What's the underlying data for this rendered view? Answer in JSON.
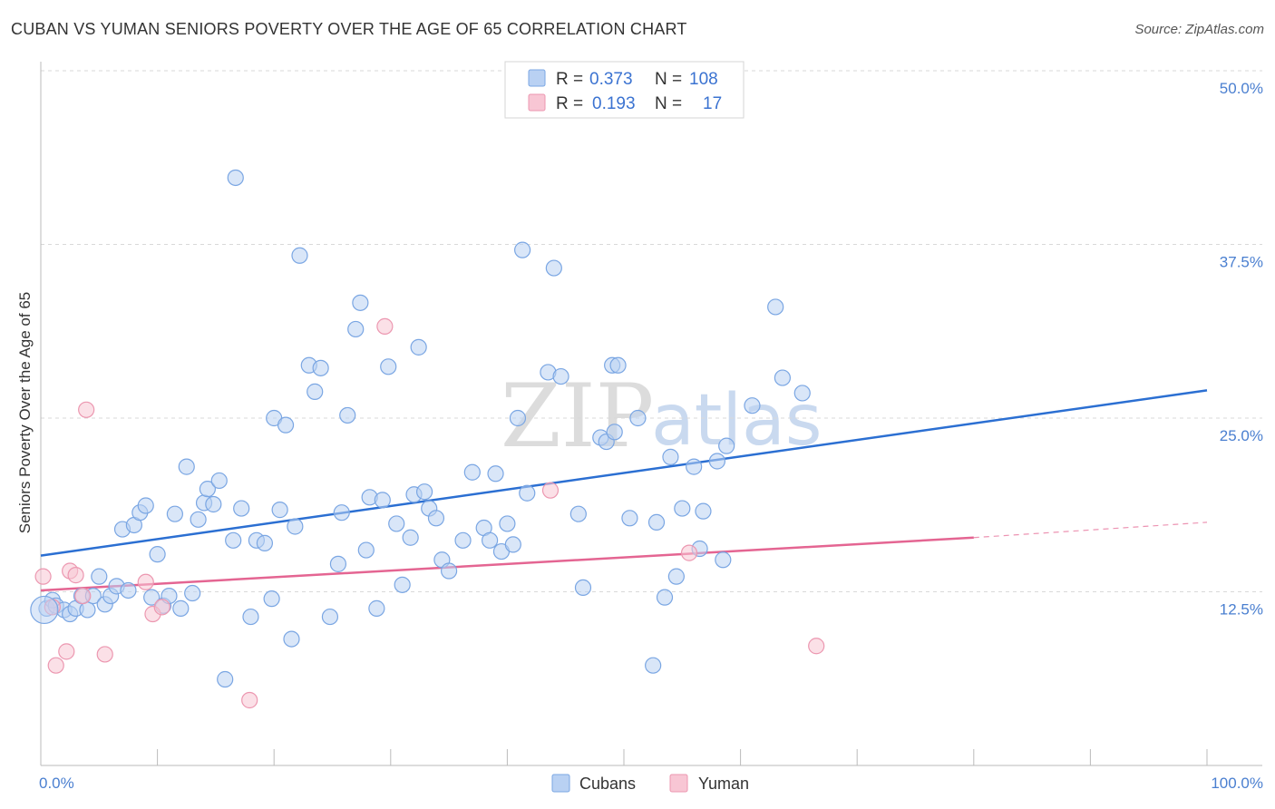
{
  "header": {
    "title": "CUBAN VS YUMAN SENIORS POVERTY OVER THE AGE OF 65 CORRELATION CHART",
    "source": "Source: ZipAtlas.com"
  },
  "watermark": {
    "zip": "ZIP",
    "atlas": "atlas"
  },
  "colors": {
    "blue_fill": "#b9d1f3",
    "blue_stroke": "#7aa6e3",
    "blue_line": "#2b6fd2",
    "pink_fill": "#f8c6d4",
    "pink_stroke": "#ec97b0",
    "pink_line": "#e46592",
    "grid": "#d9d9d9"
  },
  "legend": {
    "rows": [
      {
        "r_label": "R =",
        "r_value": "0.373",
        "n_label": "N =",
        "n_value": "108"
      },
      {
        "r_label": "R =",
        "r_value": "0.193",
        "n_label": "N =",
        "n_value": "17"
      }
    ]
  },
  "bottom_legend": [
    "Cubans",
    "Yuman"
  ],
  "chart_data": {
    "type": "scatter",
    "title": "CUBAN VS YUMAN SENIORS POVERTY OVER THE AGE OF 65 CORRELATION CHART",
    "xlabel": "",
    "ylabel": "Seniors Poverty Over the Age of 65",
    "xlim": [
      0,
      100
    ],
    "ylim": [
      0,
      50
    ],
    "x_tick_labels": [
      "0.0%",
      "100.0%"
    ],
    "y_ticks": [
      12.5,
      25.0,
      37.5,
      50.0
    ],
    "y_tick_labels": [
      "12.5%",
      "25.0%",
      "37.5%",
      "50.0%"
    ],
    "series": [
      {
        "name": "Cubans",
        "R": 0.373,
        "N": 108,
        "trend": {
          "x0": 0,
          "y0": 15.1,
          "x1": 100,
          "y1": 27.0
        },
        "points": [
          [
            0.5,
            11.3
          ],
          [
            1.0,
            11.9
          ],
          [
            1.3,
            11.5
          ],
          [
            2.0,
            11.2
          ],
          [
            2.5,
            10.9
          ],
          [
            3.0,
            11.3
          ],
          [
            3.5,
            12.2
          ],
          [
            4.0,
            11.2
          ],
          [
            4.5,
            12.2
          ],
          [
            5.0,
            13.6
          ],
          [
            5.5,
            11.6
          ],
          [
            6.0,
            12.2
          ],
          [
            6.5,
            12.9
          ],
          [
            7.0,
            17.0
          ],
          [
            7.5,
            12.6
          ],
          [
            8.0,
            17.3
          ],
          [
            8.5,
            18.2
          ],
          [
            9.0,
            18.7
          ],
          [
            9.5,
            12.1
          ],
          [
            10.0,
            15.2
          ],
          [
            10.5,
            11.5
          ],
          [
            11.0,
            12.2
          ],
          [
            11.5,
            18.1
          ],
          [
            12.0,
            11.3
          ],
          [
            12.5,
            21.5
          ],
          [
            13.0,
            12.4
          ],
          [
            13.5,
            17.7
          ],
          [
            14.0,
            18.9
          ],
          [
            14.3,
            19.9
          ],
          [
            14.8,
            18.8
          ],
          [
            15.3,
            20.5
          ],
          [
            15.8,
            6.2
          ],
          [
            16.5,
            16.2
          ],
          [
            16.7,
            42.3
          ],
          [
            17.2,
            18.5
          ],
          [
            18.0,
            10.7
          ],
          [
            18.5,
            16.2
          ],
          [
            19.2,
            16.0
          ],
          [
            19.8,
            12.0
          ],
          [
            20.0,
            25.0
          ],
          [
            20.5,
            18.4
          ],
          [
            21.0,
            24.5
          ],
          [
            21.5,
            9.1
          ],
          [
            21.8,
            17.2
          ],
          [
            22.2,
            36.7
          ],
          [
            23.0,
            28.8
          ],
          [
            23.5,
            26.9
          ],
          [
            24.0,
            28.6
          ],
          [
            24.8,
            10.7
          ],
          [
            25.5,
            14.5
          ],
          [
            25.8,
            18.2
          ],
          [
            26.3,
            25.2
          ],
          [
            27.0,
            31.4
          ],
          [
            27.4,
            33.3
          ],
          [
            27.9,
            15.5
          ],
          [
            28.2,
            19.3
          ],
          [
            28.8,
            11.3
          ],
          [
            29.3,
            19.1
          ],
          [
            29.8,
            28.7
          ],
          [
            30.5,
            17.4
          ],
          [
            31.0,
            13.0
          ],
          [
            31.7,
            16.4
          ],
          [
            32.0,
            19.5
          ],
          [
            32.4,
            30.1
          ],
          [
            32.9,
            19.7
          ],
          [
            33.3,
            18.5
          ],
          [
            33.9,
            17.8
          ],
          [
            34.4,
            14.8
          ],
          [
            35.0,
            14.0
          ],
          [
            36.2,
            16.2
          ],
          [
            37.0,
            21.1
          ],
          [
            38.0,
            17.1
          ],
          [
            38.5,
            16.2
          ],
          [
            39.0,
            21.0
          ],
          [
            39.5,
            15.4
          ],
          [
            40.0,
            17.4
          ],
          [
            40.5,
            15.9
          ],
          [
            40.9,
            25.0
          ],
          [
            41.3,
            37.1
          ],
          [
            41.7,
            19.6
          ],
          [
            43.5,
            28.3
          ],
          [
            44.0,
            35.8
          ],
          [
            44.6,
            28.0
          ],
          [
            46.1,
            18.1
          ],
          [
            46.5,
            12.8
          ],
          [
            48.0,
            23.6
          ],
          [
            48.5,
            23.3
          ],
          [
            49.0,
            28.8
          ],
          [
            49.5,
            28.8
          ],
          [
            49.2,
            24.0
          ],
          [
            50.5,
            17.8
          ],
          [
            51.2,
            25.0
          ],
          [
            52.5,
            7.2
          ],
          [
            52.8,
            17.5
          ],
          [
            53.5,
            12.1
          ],
          [
            54.0,
            22.2
          ],
          [
            54.5,
            13.6
          ],
          [
            55.0,
            18.5
          ],
          [
            56.0,
            21.5
          ],
          [
            56.5,
            15.6
          ],
          [
            56.8,
            18.3
          ],
          [
            58.0,
            21.9
          ],
          [
            58.5,
            14.8
          ],
          [
            58.8,
            23.0
          ],
          [
            61.0,
            25.9
          ],
          [
            63.0,
            33.0
          ],
          [
            63.6,
            27.9
          ],
          [
            65.3,
            26.8
          ]
        ]
      },
      {
        "name": "Yuman",
        "R": 0.193,
        "N": 17,
        "trend": {
          "x0": 0,
          "y0": 12.6,
          "x1": 80,
          "y1": 16.4,
          "dash_to_x": 100,
          "dash_to_y": 17.5
        },
        "points": [
          [
            0.2,
            13.6
          ],
          [
            1.0,
            11.4
          ],
          [
            1.3,
            7.2
          ],
          [
            2.2,
            8.2
          ],
          [
            2.5,
            14.0
          ],
          [
            3.0,
            13.7
          ],
          [
            3.6,
            12.2
          ],
          [
            3.9,
            25.6
          ],
          [
            5.5,
            8.0
          ],
          [
            9.0,
            13.2
          ],
          [
            9.6,
            10.9
          ],
          [
            10.4,
            11.4
          ],
          [
            17.9,
            4.7
          ],
          [
            29.5,
            31.6
          ],
          [
            43.7,
            19.8
          ],
          [
            55.6,
            15.3
          ],
          [
            66.5,
            8.6
          ]
        ]
      }
    ]
  }
}
